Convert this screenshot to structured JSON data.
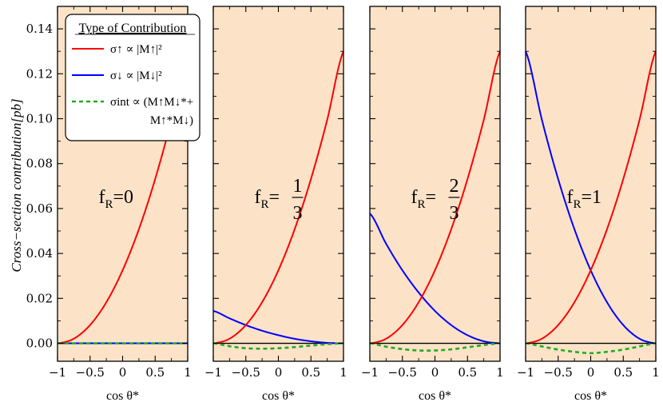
{
  "chart_data": {
    "type": "line",
    "ylabel": "Cross−section contribution[pb]",
    "ylim": [
      -0.008,
      0.15
    ],
    "xlim": [
      -1,
      1
    ],
    "yticks": [
      "0.00",
      "0.02",
      "0.04",
      "0.06",
      "0.08",
      "0.10",
      "0.12",
      "0.14"
    ],
    "ytick_values": [
      0,
      0.02,
      0.04,
      0.06,
      0.08,
      0.1,
      0.12,
      0.14
    ],
    "xticks": [
      "−1",
      "−0.5",
      "0",
      "0.5",
      "1"
    ],
    "xtick_values": [
      -1,
      -0.5,
      0,
      0.5,
      1
    ],
    "xlabel": "cos θ*",
    "background": "#fce3c8",
    "colors": {
      "up": "#ff0000",
      "down": "#0000ff",
      "int": "#22aa22"
    },
    "legend": {
      "title": "Type of Contribution",
      "placement": "top-left",
      "entries": [
        {
          "key": "up",
          "label": "σ↑ ∝ |M↑|²"
        },
        {
          "key": "down",
          "label": "σ↓ ∝ |M↓|²"
        },
        {
          "key": "int",
          "label": "σint ∝ (M↑M↓*+",
          "label2": "M↑*M↓)"
        }
      ]
    },
    "x": [
      -1,
      -0.75,
      -0.5,
      -0.25,
      0,
      0.25,
      0.5,
      0.75,
      1
    ],
    "panels": [
      {
        "label_main": "f",
        "label_sub": "R",
        "label_value": "=0",
        "series": [
          {
            "key": "up",
            "values": [
              0.0,
              0.00203,
              0.00813,
              0.01828,
              0.0325,
              0.05078,
              0.07313,
              0.09953,
              0.13
            ]
          },
          {
            "key": "down",
            "values": [
              0,
              0,
              0,
              0,
              0,
              0,
              0,
              0,
              0
            ]
          },
          {
            "key": "int",
            "values": [
              0,
              0,
              0,
              0,
              0,
              0,
              0,
              0,
              0
            ]
          }
        ]
      },
      {
        "label_main": "f",
        "label_sub": "R",
        "label_value": "=",
        "label_num": "1",
        "label_den": "3",
        "series": [
          {
            "key": "up",
            "values": [
              0.0,
              0.00203,
              0.00813,
              0.01828,
              0.0325,
              0.05078,
              0.07313,
              0.09953,
              0.13
            ]
          },
          {
            "key": "down",
            "values": [
              0.0144,
              0.0111,
              0.0081,
              0.0056,
              0.0036,
              0.002,
              0.0009,
              0.0002,
              0.0
            ]
          },
          {
            "key": "int",
            "values": [
              0.0,
              -0.0013,
              -0.0022,
              -0.0024,
              -0.0022,
              -0.0017,
              -0.001,
              -0.0004,
              0.0
            ]
          }
        ]
      },
      {
        "label_main": "f",
        "label_sub": "R",
        "label_value": "=",
        "label_num": "2",
        "label_den": "3",
        "series": [
          {
            "key": "up",
            "values": [
              0.0,
              0.00203,
              0.00813,
              0.01828,
              0.0325,
              0.05078,
              0.07313,
              0.09953,
              0.13
            ]
          },
          {
            "key": "down",
            "values": [
              0.0578,
              0.0443,
              0.0325,
              0.0226,
              0.0144,
              0.0081,
              0.0036,
              0.0009,
              0.0
            ]
          },
          {
            "key": "int",
            "values": [
              0.0,
              -0.0015,
              -0.0026,
              -0.0032,
              -0.0032,
              -0.0027,
              -0.0018,
              -0.0008,
              0.0
            ]
          }
        ]
      },
      {
        "label_main": "f",
        "label_sub": "R",
        "label_value": "=1",
        "series": [
          {
            "key": "up",
            "values": [
              0.0,
              0.00203,
              0.00813,
              0.01828,
              0.0325,
              0.05078,
              0.07313,
              0.09953,
              0.13
            ]
          },
          {
            "key": "down",
            "values": [
              0.13,
              0.09953,
              0.07313,
              0.05078,
              0.0325,
              0.01828,
              0.00813,
              0.00203,
              0.0
            ]
          },
          {
            "key": "int",
            "values": [
              0.0,
              -0.0014,
              -0.0028,
              -0.0038,
              -0.0044,
              -0.0038,
              -0.0028,
              -0.0014,
              0.0
            ]
          }
        ]
      }
    ]
  }
}
